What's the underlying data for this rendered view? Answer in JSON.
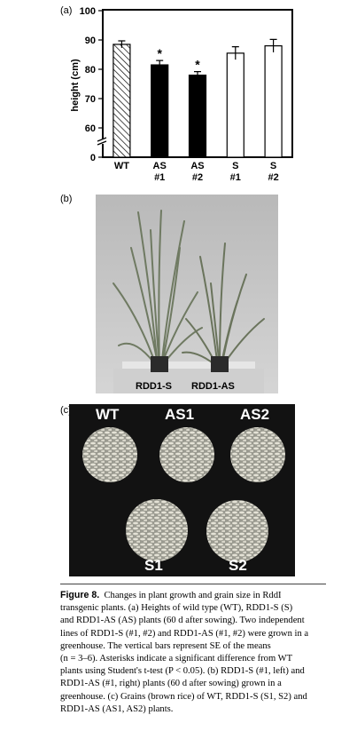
{
  "panels": {
    "a": "(a)",
    "b": "(b)",
    "c": "(c)"
  },
  "chart_data": {
    "type": "bar",
    "ylabel": "height (cm)",
    "ylim": [
      55,
      100
    ],
    "axis_break": true,
    "yticks": [
      "0",
      "60",
      "70",
      "80",
      "90",
      "100"
    ],
    "categories": [
      [
        "WT",
        ""
      ],
      [
        "AS",
        "#1"
      ],
      [
        "AS",
        "#2"
      ],
      [
        "S",
        "#1"
      ],
      [
        "S",
        "#2"
      ]
    ],
    "values": [
      88.5,
      81.5,
      78,
      85.5,
      88
    ],
    "errors": [
      1.2,
      1.5,
      1.2,
      2.2,
      2.2
    ],
    "fills": [
      "hatched",
      "black",
      "black",
      "white",
      "white"
    ],
    "significance": [
      "",
      "*",
      "*",
      "",
      ""
    ]
  },
  "photo_b": {
    "labels": [
      "RDD1-S",
      "RDD1-AS"
    ]
  },
  "photo_c": {
    "labels": [
      "WT",
      "AS1",
      "AS2",
      "S1",
      "S2"
    ]
  },
  "caption": {
    "title": "Figure 8.",
    "lines": [
      "Changes in plant growth and grain size in RddI",
      "transgenic plants. (a) Heights of wild type (WT), RDD1-S (S)",
      "and RDD1-AS (AS) plants (60 d after sowing). Two independent",
      "lines of RDD1-S (#1, #2) and RDD1-AS (#1, #2) were grown in a",
      "greenhouse. The vertical bars represent SE of the means",
      "(n = 3–6). Asterisks indicate a significant difference from WT",
      "plants using Student's t-test (P < 0.05). (b) RDD1-S (#1, left) and",
      "RDD1-AS (#1, right) plants (60 d after sowing) grown in a",
      "greenhouse. (c) Grains (brown rice) of WT, RDD1-S (S1, S2) and",
      "RDD1-AS (AS1, AS2) plants."
    ]
  }
}
